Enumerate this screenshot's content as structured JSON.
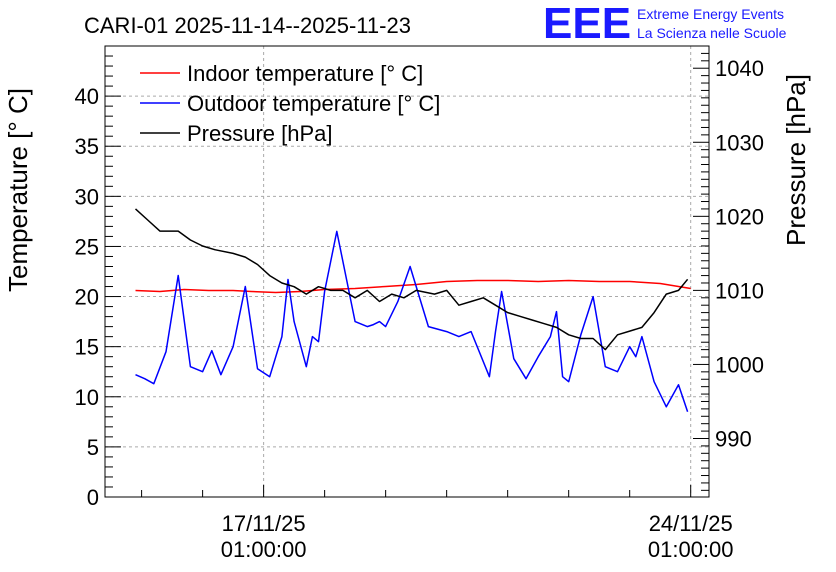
{
  "chart_data": {
    "type": "line",
    "title": "CARI-01 2025-11-14--2025-11-23",
    "ylabel_left": "Temperature [° C]",
    "ylabel_right": "Pressure [hPa]",
    "left_axis": {
      "range": [
        0,
        45
      ],
      "ticks": [
        0,
        5,
        10,
        15,
        20,
        25,
        30,
        35,
        40
      ]
    },
    "right_axis": {
      "range": [
        982.1,
        1043.0
      ],
      "ticks": [
        990,
        1000,
        1010,
        1020,
        1030,
        1040
      ]
    },
    "x_axis": {
      "range_days": [
        -2.6,
        7.3
      ],
      "gridlines_days": [
        0,
        7
      ],
      "tick_labels": [
        {
          "day": 0,
          "date": "17/11/25",
          "time": "01:00:00"
        },
        {
          "day": 7,
          "date": "24/11/25",
          "time": "01:00:00"
        }
      ],
      "grid": true
    },
    "legend": {
      "placement": "top-left",
      "entries": [
        "Indoor temperature [° C]",
        "Outdoor temperature [° C]",
        "Pressure [hPa]"
      ]
    },
    "logo": {
      "text": "EEE",
      "line1": "Extreme Energy Events",
      "line2": "La Scienza nelle Scuole",
      "color": "#1a1aff"
    },
    "series": [
      {
        "name": "Indoor temperature [° C]",
        "axis": "left",
        "color": "#ff0000",
        "x": [
          -2.1,
          -1.7,
          -1.3,
          -0.9,
          -0.5,
          -0.2,
          0.2,
          0.6,
          1.0,
          1.5,
          2.0,
          2.5,
          3.0,
          3.5,
          4.0,
          4.5,
          5.0,
          5.5,
          6.0,
          6.5,
          6.8,
          7.0
        ],
        "values": [
          20.6,
          20.5,
          20.7,
          20.6,
          20.6,
          20.5,
          20.4,
          20.5,
          20.7,
          20.8,
          21.0,
          21.2,
          21.5,
          21.6,
          21.6,
          21.5,
          21.6,
          21.5,
          21.5,
          21.3,
          21.0,
          20.8
        ]
      },
      {
        "name": "Outdoor temperature [° C]",
        "axis": "left",
        "color": "#0000ff",
        "x": [
          -2.1,
          -1.95,
          -1.8,
          -1.6,
          -1.4,
          -1.2,
          -1.0,
          -0.85,
          -0.7,
          -0.5,
          -0.3,
          -0.1,
          0.1,
          0.3,
          0.4,
          0.5,
          0.7,
          0.8,
          0.9,
          1.0,
          1.2,
          1.5,
          1.7,
          1.8,
          1.9,
          2.0,
          2.2,
          2.4,
          2.7,
          3.0,
          3.2,
          3.4,
          3.7,
          3.8,
          3.9,
          4.1,
          4.3,
          4.5,
          4.7,
          4.8,
          4.9,
          5.0,
          5.2,
          5.4,
          5.6,
          5.8,
          6.0,
          6.1,
          6.2,
          6.4,
          6.6,
          6.8,
          6.95
        ],
        "values": [
          12.2,
          11.8,
          11.3,
          14.5,
          22.1,
          13.0,
          12.5,
          14.6,
          12.2,
          15.0,
          21.0,
          12.8,
          12.0,
          16.0,
          21.7,
          17.5,
          13.0,
          16.0,
          15.5,
          20.5,
          26.5,
          17.5,
          17.0,
          17.2,
          17.5,
          17.0,
          19.5,
          23.0,
          17.0,
          16.5,
          16.0,
          16.5,
          12.0,
          16.5,
          20.5,
          13.8,
          11.8,
          14.0,
          16.0,
          18.5,
          12.0,
          11.5,
          16.2,
          20.0,
          13.0,
          12.5,
          15.0,
          14.0,
          16.0,
          11.5,
          9.0,
          11.2,
          8.5
        ]
      },
      {
        "name": "Pressure [hPa]",
        "axis": "right",
        "color": "#000000",
        "x": [
          -2.1,
          -1.9,
          -1.7,
          -1.4,
          -1.2,
          -1.0,
          -0.8,
          -0.5,
          -0.3,
          -0.1,
          0.1,
          0.3,
          0.5,
          0.7,
          0.9,
          1.1,
          1.3,
          1.5,
          1.7,
          1.9,
          2.1,
          2.3,
          2.5,
          2.8,
          3.0,
          3.2,
          3.4,
          3.6,
          3.8,
          4.0,
          4.2,
          4.4,
          4.6,
          4.8,
          5.0,
          5.2,
          5.4,
          5.6,
          5.8,
          6.0,
          6.2,
          6.4,
          6.6,
          6.8,
          6.95
        ],
        "values": [
          1021.0,
          1019.5,
          1018.0,
          1018.0,
          1016.8,
          1016.0,
          1015.5,
          1015.0,
          1014.5,
          1013.5,
          1012.0,
          1011.0,
          1010.5,
          1009.5,
          1010.5,
          1010.0,
          1010.0,
          1009.0,
          1010.0,
          1008.5,
          1009.5,
          1009.0,
          1010.0,
          1009.5,
          1010.0,
          1008.0,
          1008.5,
          1009.0,
          1008.0,
          1007.0,
          1006.5,
          1006.0,
          1005.5,
          1005.0,
          1004.0,
          1003.5,
          1003.5,
          1002.0,
          1004.0,
          1004.5,
          1005.0,
          1007.0,
          1009.5,
          1010.0,
          1011.5
        ]
      }
    ]
  }
}
